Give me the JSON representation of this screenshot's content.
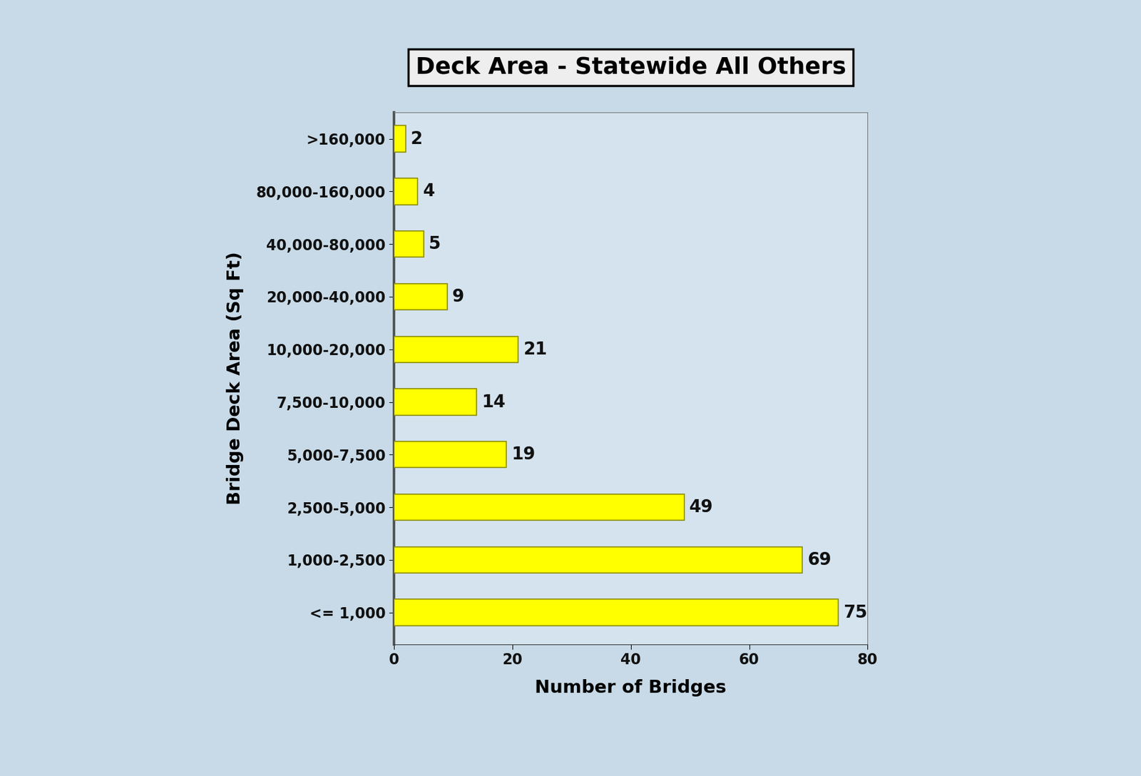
{
  "chart_data": {
    "type": "bar",
    "orientation": "horizontal",
    "title": "Deck Area - Statewide All Others",
    "x_label": "Number of Bridges",
    "y_label": "Bridge Deck Area (Sq Ft)",
    "categories": [
      "<= 1,000",
      "1,000-2,500",
      "2,500-5,000",
      "5,000-7,500",
      "7,500-10,000",
      "10,000-20,000",
      "20,000-40,000",
      "40,000-80,000",
      "80,000-160,000",
      ">160,000"
    ],
    "values": [
      75,
      69,
      49,
      19,
      14,
      21,
      9,
      5,
      4,
      2
    ],
    "color": "#ffff00",
    "xlim": [
      0,
      80
    ],
    "xticks": [
      0,
      20,
      40,
      60,
      80
    ],
    "data_labels": true,
    "grid": false
  }
}
